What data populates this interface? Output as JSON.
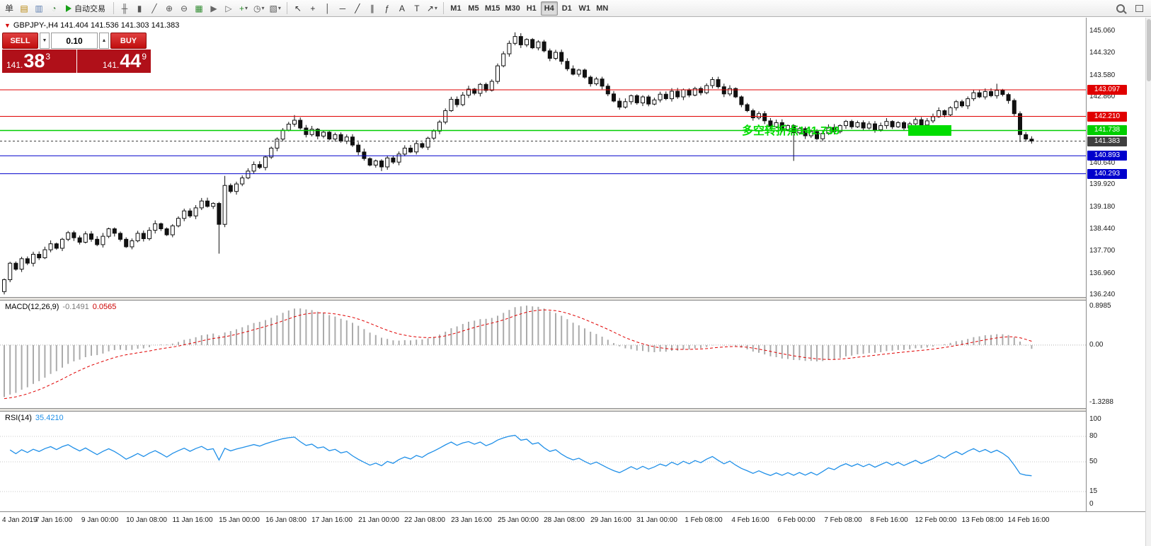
{
  "toolbar": {
    "standard_icons": [
      {
        "name": "new-order-icon",
        "glyph": "单",
        "color": "#333333"
      },
      {
        "name": "charts-icon",
        "glyph": "▤",
        "color": "#b8860b"
      },
      {
        "name": "profiles-icon",
        "glyph": "▥",
        "color": "#5f7fb0"
      },
      {
        "name": "refresh-icon",
        "glyph": "◔",
        "color": "#4f8f4f"
      }
    ],
    "autotrade": {
      "label": "自动交易"
    },
    "chart_type_icons": [
      {
        "name": "bar-chart-icon",
        "glyph": "╫",
        "color": "#555555"
      },
      {
        "name": "candlestick-chart-icon",
        "glyph": "▮",
        "color": "#555555"
      },
      {
        "name": "line-chart-icon",
        "glyph": "╱",
        "color": "#555555"
      },
      {
        "name": "zoom-in-icon",
        "glyph": "⊕",
        "color": "#555555"
      },
      {
        "name": "zoom-out-icon",
        "glyph": "⊖",
        "color": "#555555"
      },
      {
        "name": "tile-windows-icon",
        "glyph": "▦",
        "color": "#2e8b2e"
      },
      {
        "name": "auto-scroll-icon",
        "glyph": "▶",
        "color": "#666666"
      },
      {
        "name": "chart-shift-icon",
        "glyph": "▷",
        "color": "#666666"
      },
      {
        "name": "new-chart-icon",
        "glyph": "+",
        "color": "#2e8b2e",
        "caret": true
      },
      {
        "name": "period-icon",
        "glyph": "◷",
        "color": "#555555",
        "caret": true
      },
      {
        "name": "template-icon",
        "glyph": "▧",
        "color": "#555555",
        "caret": true
      }
    ],
    "object_icons": [
      {
        "name": "cursor-icon",
        "glyph": "↖",
        "color": "#333333"
      },
      {
        "name": "crosshair-icon",
        "glyph": "+",
        "color": "#333333"
      },
      {
        "name": "vertical-line-icon",
        "glyph": "│",
        "color": "#333333"
      },
      {
        "name": "horizontal-line-icon",
        "glyph": "─",
        "color": "#333333"
      },
      {
        "name": "trendline-icon",
        "glyph": "╱",
        "color": "#333333"
      },
      {
        "name": "equidistant-channel-icon",
        "glyph": "∥",
        "color": "#333333"
      },
      {
        "name": "fibonacci-icon",
        "glyph": "ƒ",
        "color": "#333333"
      },
      {
        "name": "text-icon",
        "glyph": "A",
        "color": "#333333"
      },
      {
        "name": "label-icon",
        "glyph": "T",
        "color": "#333333"
      },
      {
        "name": "arrows-icon",
        "glyph": "↗",
        "color": "#333333",
        "caret": true
      }
    ],
    "timeframes": [
      {
        "label": "M1"
      },
      {
        "label": "M5"
      },
      {
        "label": "M15"
      },
      {
        "label": "M30"
      },
      {
        "label": "H1"
      },
      {
        "label": "H4",
        "active": true
      },
      {
        "label": "D1"
      },
      {
        "label": "W1"
      },
      {
        "label": "MN"
      }
    ],
    "right_icons": [
      {
        "name": "search-icon",
        "special": "magnifier"
      },
      {
        "name": "new-window-icon",
        "special": "expand"
      }
    ]
  },
  "symbol_header": {
    "icon": "▼",
    "text": "GBPJPY-,H4  141.404 141.536 141.303 141.383"
  },
  "one_click": {
    "sell_label": "SELL",
    "buy_label": "BUY",
    "volume": "0.10",
    "caret_down": "▼",
    "caret_up": "▲",
    "sell_prefix": "141.",
    "sell_big": "38",
    "sell_sup": "3",
    "buy_prefix": "141.",
    "buy_big": "44",
    "buy_sup": "9"
  },
  "chart_data": {
    "type": "candlestick",
    "symbol": "GBPJPY-",
    "period": "H4",
    "price_axis": {
      "labels": [
        "145.060",
        "144.320",
        "143.580",
        "142.860",
        "142.120",
        "141.380",
        "140.640",
        "139.920",
        "139.180",
        "138.440",
        "137.700",
        "136.960",
        "136.240"
      ]
    },
    "closes": [
      136.75,
      137.3,
      137.1,
      137.45,
      137.3,
      137.6,
      137.48,
      137.75,
      137.95,
      137.8,
      138.1,
      138.32,
      138.15,
      138.0,
      138.28,
      138.1,
      137.92,
      138.2,
      138.45,
      138.3,
      138.1,
      137.85,
      138.05,
      138.3,
      138.12,
      138.4,
      138.62,
      138.45,
      138.25,
      138.55,
      138.8,
      139.05,
      138.88,
      139.15,
      139.38,
      139.2,
      139.3,
      138.6,
      139.9,
      139.7,
      139.95,
      140.15,
      140.38,
      140.6,
      140.5,
      140.85,
      141.15,
      141.45,
      141.75,
      141.95,
      142.08,
      141.82,
      141.6,
      141.78,
      141.55,
      141.68,
      141.45,
      141.6,
      141.38,
      141.52,
      141.25,
      141.02,
      140.8,
      140.58,
      140.72,
      140.52,
      140.82,
      140.68,
      140.95,
      141.15,
      141.02,
      141.3,
      141.18,
      141.48,
      141.72,
      142.02,
      142.4,
      142.78,
      142.6,
      142.92,
      143.12,
      142.98,
      143.28,
      143.08,
      143.38,
      143.9,
      144.3,
      144.65,
      144.88,
      144.6,
      144.78,
      144.5,
      144.7,
      144.4,
      144.15,
      144.35,
      144.05,
      143.8,
      143.62,
      143.76,
      143.52,
      143.3,
      143.46,
      143.22,
      142.96,
      142.72,
      142.52,
      142.7,
      142.9,
      142.66,
      142.86,
      142.62,
      142.76,
      142.95,
      142.8,
      143.05,
      142.86,
      143.1,
      142.92,
      143.14,
      143.0,
      143.24,
      143.44,
      143.2,
      142.96,
      143.14,
      142.86,
      142.6,
      142.4,
      142.16,
      142.3,
      142.06,
      141.86,
      142.0,
      141.76,
      141.9,
      141.66,
      141.8,
      141.56,
      141.7,
      141.46,
      141.64,
      141.84,
      141.7,
      141.9,
      142.04,
      141.86,
      142.0,
      141.82,
      141.96,
      141.76,
      141.9,
      142.04,
      141.86,
      142.0,
      141.82,
      141.96,
      142.1,
      141.92,
      142.06,
      142.2,
      142.4,
      142.26,
      142.5,
      142.7,
      142.56,
      142.8,
      143.0,
      142.86,
      143.04,
      142.9,
      143.08,
      142.94,
      142.74,
      142.3,
      141.6,
      141.45,
      141.383
    ],
    "wick_overrides": {
      "0": {
        "open": 136.35,
        "low": 136.26
      },
      "37": {
        "low": 137.62
      },
      "38": {
        "high": 140.22
      },
      "50": {
        "high": 142.25
      },
      "65": {
        "low": 140.38
      },
      "88": {
        "high": 145.02
      },
      "136": {
        "low": 140.72
      },
      "171": {
        "high": 143.3
      },
      "175": {
        "low": 141.35
      },
      "177": {
        "low": 141.3
      }
    },
    "lines": [
      {
        "value": 143.097,
        "tag": "143.097",
        "color": "#e00000",
        "style": "solid"
      },
      {
        "value": 142.21,
        "tag": "142.210",
        "color": "#e00000",
        "style": "solid"
      },
      {
        "value": 141.738,
        "tag": "141.738",
        "color": "#00ce00",
        "style": "solid",
        "width": 1.6
      },
      {
        "value": 141.383,
        "tag": "141.383",
        "color": "#3f3f3f",
        "style": "dotted"
      },
      {
        "value": 140.893,
        "tag": "140.893",
        "color": "#0000cc",
        "style": "solid"
      },
      {
        "value": 140.293,
        "tag": "140.293",
        "color": "#0000cc",
        "style": "solid"
      }
    ],
    "annotation": {
      "text": "多空转折点141.738",
      "color": "#00dd00"
    },
    "highlight_box": {
      "color": "#00dd00"
    },
    "macd": {
      "label": "MACD(12,26,9)",
      "value_main": "-0.1491",
      "value_signal": "0.0565",
      "scale_labels": [
        "0.8985",
        "0.00",
        "-1.3288"
      ],
      "seed": {
        "ema12": 137.9,
        "ema26": 139.1,
        "signal": -1.25
      }
    },
    "rsi": {
      "label": "RSI(14)",
      "value": "35.4210",
      "axis_labels": [
        "100",
        "80",
        "50",
        "15",
        "0"
      ],
      "levels": [
        80,
        50,
        15
      ]
    },
    "time_labels": [
      "4 Jan 2019",
      "7 Jan 16:00",
      "9 Jan 00:00",
      "10 Jan 08:00",
      "11 Jan 16:00",
      "15 Jan 00:00",
      "16 Jan 08:00",
      "17 Jan 16:00",
      "21 Jan 00:00",
      "22 Jan 08:00",
      "23 Jan 16:00",
      "25 Jan 00:00",
      "28 Jan 08:00",
      "29 Jan 16:00",
      "31 Jan 00:00",
      "1 Feb 08:00",
      "4 Feb 16:00",
      "6 Feb 00:00",
      "7 Feb 08:00",
      "8 Feb 16:00",
      "12 Feb 00:00",
      "13 Feb 08:00",
      "14 Feb 16:00"
    ]
  }
}
